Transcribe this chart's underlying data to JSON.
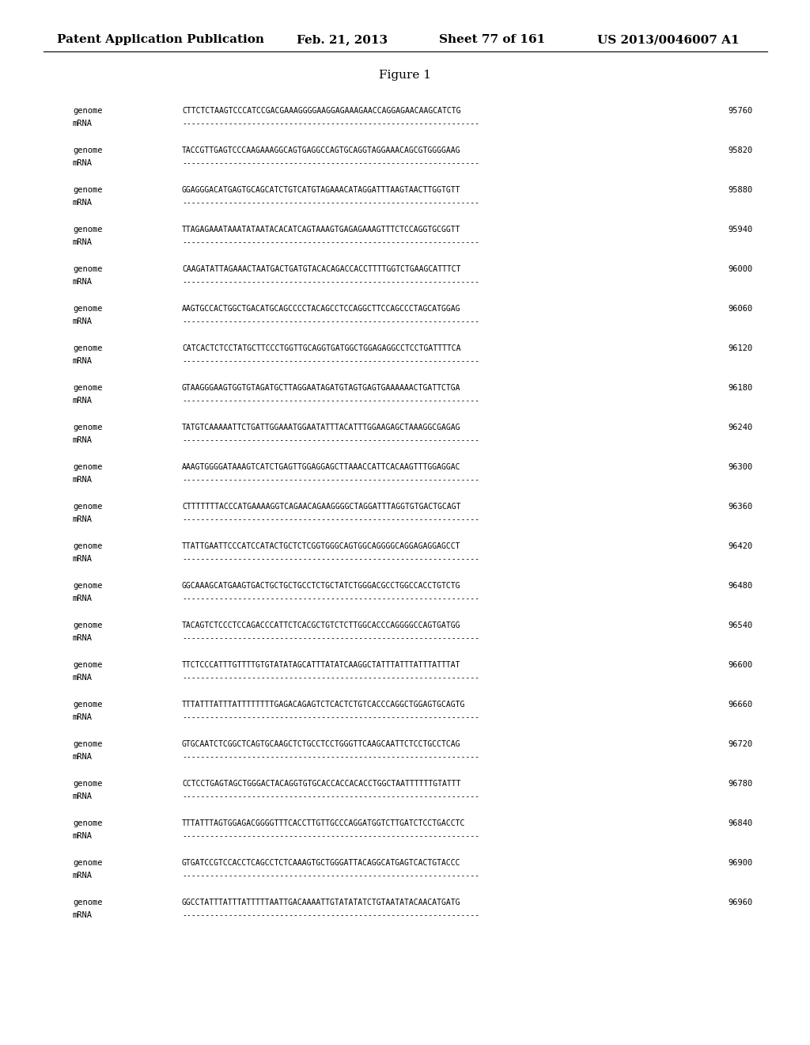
{
  "title_header": "Patent Application Publication",
  "header_date": "Feb. 21, 2013",
  "header_sheet": "Sheet 77 of 161",
  "header_patent": "US 2013/0046007 A1",
  "figure_label": "Figure 1",
  "sequences": [
    {
      "genome": "CTTCTCTAAGTCCCATCCGACGAAAGGGGAAGGAGAAAGAACCAGGAGAACAAGCATCTG",
      "number": "95760"
    },
    {
      "genome": "TACCGTTGAGTCCCAAGAAAGGCAGTGAGGCCAGTGCAGGTAGGAAACAGCGTGGGGAAG",
      "number": "95820"
    },
    {
      "genome": "GGAGGGACATGAGTGCAGCATCTGTCATGTAGAAACATAGGATTTAAGTAACTTGGTGTT",
      "number": "95880"
    },
    {
      "genome": "TTAGAGAAATAAATATAATACACATCAGTAAAGTGAGAGAAAGTTTCTCCAGGTGCGGTT",
      "number": "95940"
    },
    {
      "genome": "CAAGATATTAGAAACTAATGACTGATGTACACAGACCACCTTTTGGTCTGAAGCATTTCT",
      "number": "96000"
    },
    {
      "genome": "AAGTGCCACTGGCTGACATGCAGCCCCTACAGCCTCCAGGCTTCCAGCCCTAGCATGGAG",
      "number": "96060"
    },
    {
      "genome": "CATCACTCTCCTATGCTTCCCTGGTTGCAGGTGATGGCTGGAGAGGCCTCCTGATTTTCA",
      "number": "96120"
    },
    {
      "genome": "GTAAGGGAAGTGGTGTAGATGCTTAGGAATAGATGTAGTGAGTGAAAAAACTGATTCTGA",
      "number": "96180"
    },
    {
      "genome": "TATGTCAAAAATTCTGATTGGAAATGGAATATTTACATTTGGAAGAGCTAAAGGCGAGAG",
      "number": "96240"
    },
    {
      "genome": "AAAGTGGGGATAAAGTCATCTGAGTTGGAGGAGCTTAAACCATTCACAAGTTTGGAGGAC",
      "number": "96300"
    },
    {
      "genome": "CTTTTTTTACCCATGAAAAGGTCAGAACAGAAGGGGCTAGGATTTAGGTGTGACTGCAGT",
      "number": "96360"
    },
    {
      "genome": "TTATTGAATTCCCATCCATACTGCTCTCGGTGGGCAGTGGCAGGGGCAGGAGAGGAGCCT",
      "number": "96420"
    },
    {
      "genome": "GGCAAAGCATGAAGTGACTGCTGCTGCCTCTGCTATCTGGGACGCCTGGCCACCTGTCTG",
      "number": "96480"
    },
    {
      "genome": "TACAGTCTCCCTCCAGACCCATTCTCACGCTGTCTCTTGGCACCCAGGGGCCAGTGATGG",
      "number": "96540"
    },
    {
      "genome": "TTCTCCCATTTGTTTTGTGTATATAGCATTTATATCAAGGCTATTTATTTATTTATTTAT",
      "number": "96600"
    },
    {
      "genome": "TTTATTTATTTATTTTTTTTGAGACAGAGTCTCACTCTGTCACCCAGGCTGGAGTGCAGTG",
      "number": "96660"
    },
    {
      "genome": "GTGCAATCTCGGCTCAGTGCAAGCTCTGCCTCCTGGGTTCAAGCAATTCTCCTGCCTCAG",
      "number": "96720"
    },
    {
      "genome": "CCTCCTGAGTAGCTGGGACTACAGGTGTGCACCACCACACCTGGCTAATTTTTTGTATTT",
      "number": "96780"
    },
    {
      "genome": "TTTATTTAGTGGAGACGGGGTTTCACCTTGTTGCCCAGGATGGTCTTGATCTCCTGACCTC",
      "number": "96840"
    },
    {
      "genome": "GTGATCCGTCCACCTCAGCCTCTCAAAGTGCTGGGATTACAGGCATGAGTCACTGTACCC",
      "number": "96900"
    },
    {
      "genome": "GGCCTATTTATTTATTTTTAATTGACAAAATTGTATATATCTGTAATATACAACATGATG",
      "number": "96960"
    }
  ],
  "mrna_dashes": "----------------------------------------------------------------",
  "bg_color": "#ffffff",
  "text_color": "#000000",
  "font_size_header": 11,
  "font_size_body": 7.5,
  "font_size_seq": 7.0,
  "font_size_figure": 11
}
